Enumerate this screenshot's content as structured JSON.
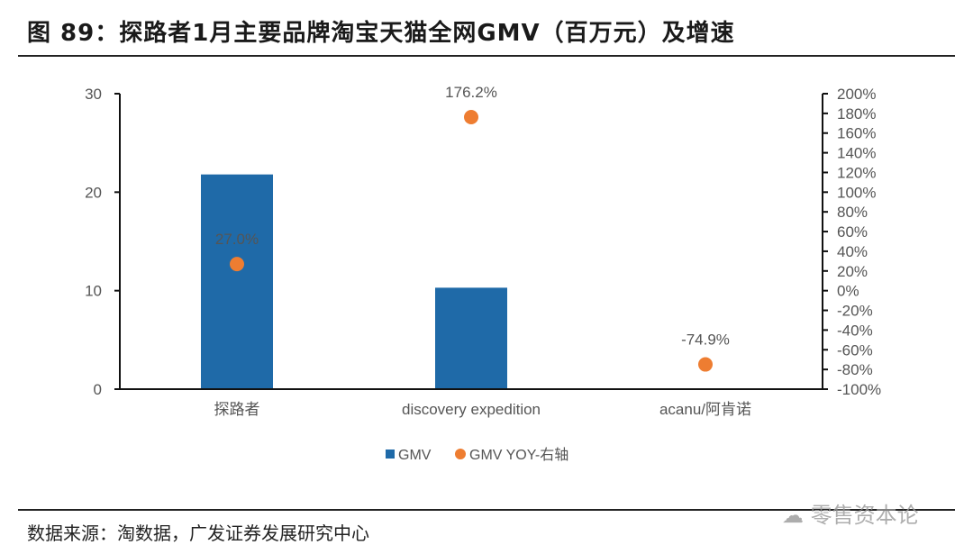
{
  "title": "图 89：探路者1月主要品牌淘宝天猫全网GMV（百万元）及增速",
  "source": "数据来源：淘数据，广发证券发展研究中心",
  "watermark": "零售资本论",
  "chart_data": {
    "type": "bar",
    "categories": [
      "探路者",
      "discovery expedition",
      "acanu/阿肯诺"
    ],
    "series": [
      {
        "name": "GMV",
        "type": "bar",
        "axis": "left",
        "values": [
          21.8,
          10.3,
          0
        ],
        "color": "#1f6aa8"
      },
      {
        "name": "GMV YOY-右轴",
        "type": "scatter",
        "axis": "right",
        "values": [
          27.0,
          176.2,
          -74.9
        ],
        "labels": [
          "27.0%",
          "176.2%",
          "-74.9%"
        ],
        "color": "#ee7d31"
      }
    ],
    "left_axis": {
      "ylim": [
        0,
        30
      ],
      "ticks": [
        "0",
        "10",
        "20",
        "30"
      ]
    },
    "right_axis": {
      "ylim": [
        -100,
        200
      ],
      "ticks": [
        "-100%",
        "-80%",
        "-60%",
        "-40%",
        "-20%",
        "0%",
        "20%",
        "40%",
        "60%",
        "80%",
        "100%",
        "120%",
        "140%",
        "160%",
        "180%",
        "200%"
      ]
    },
    "legend_position": "bottom",
    "grid": false
  }
}
